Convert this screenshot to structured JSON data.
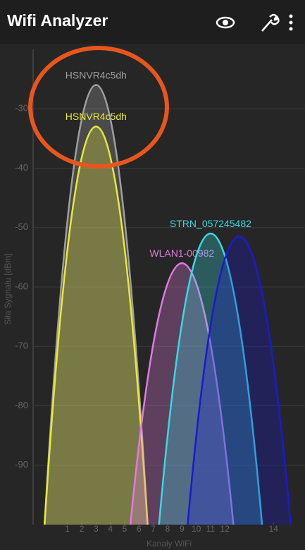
{
  "app_bar": {
    "title": "Wifi Analyzer"
  },
  "chart_data": {
    "type": "wifi-channel",
    "y_label": "Siła Sygnału [dBm]",
    "x_label": "Kanały WiFi",
    "ylim": [
      -100,
      -20
    ],
    "yticks": [
      -30,
      -40,
      -50,
      -60,
      -70,
      -80,
      -90
    ],
    "xlim": [
      2400,
      2495
    ],
    "xticks": [
      {
        "value": 2412,
        "label": "1"
      },
      {
        "value": 2417,
        "label": "2"
      },
      {
        "value": 2422,
        "label": "3"
      },
      {
        "value": 2427,
        "label": "4"
      },
      {
        "value": 2432,
        "label": "5"
      },
      {
        "value": 2437,
        "label": "6"
      },
      {
        "value": 2442,
        "label": "7"
      },
      {
        "value": 2447,
        "label": "8"
      },
      {
        "value": 2452,
        "label": "9"
      },
      {
        "value": 2457,
        "label": "10"
      },
      {
        "value": 2462,
        "label": "11"
      },
      {
        "value": 2467,
        "label": "12"
      },
      {
        "value": 2484,
        "label": "14"
      }
    ],
    "grid": true,
    "series": [
      {
        "name": "HSNVR4c5dh",
        "color": "#9e9e9e",
        "x": [
          2422
        ],
        "values": [
          -26
        ]
      },
      {
        "name": "HSNVR4c5dh",
        "color": "#e8e83a",
        "x": [
          2422
        ],
        "values": [
          -33
        ]
      },
      {
        "name": "WLAN1-00982",
        "color": "#e07be0",
        "x": [
          2452
        ],
        "values": [
          -56
        ]
      },
      {
        "name": "STRN_057245482",
        "color": "#3ad8e0",
        "x": [
          2462
        ],
        "values": [
          -51
        ]
      },
      {
        "name": null,
        "color": "#1a1ad0",
        "x": [
          2472
        ],
        "values": [
          -51.5
        ]
      }
    ]
  }
}
